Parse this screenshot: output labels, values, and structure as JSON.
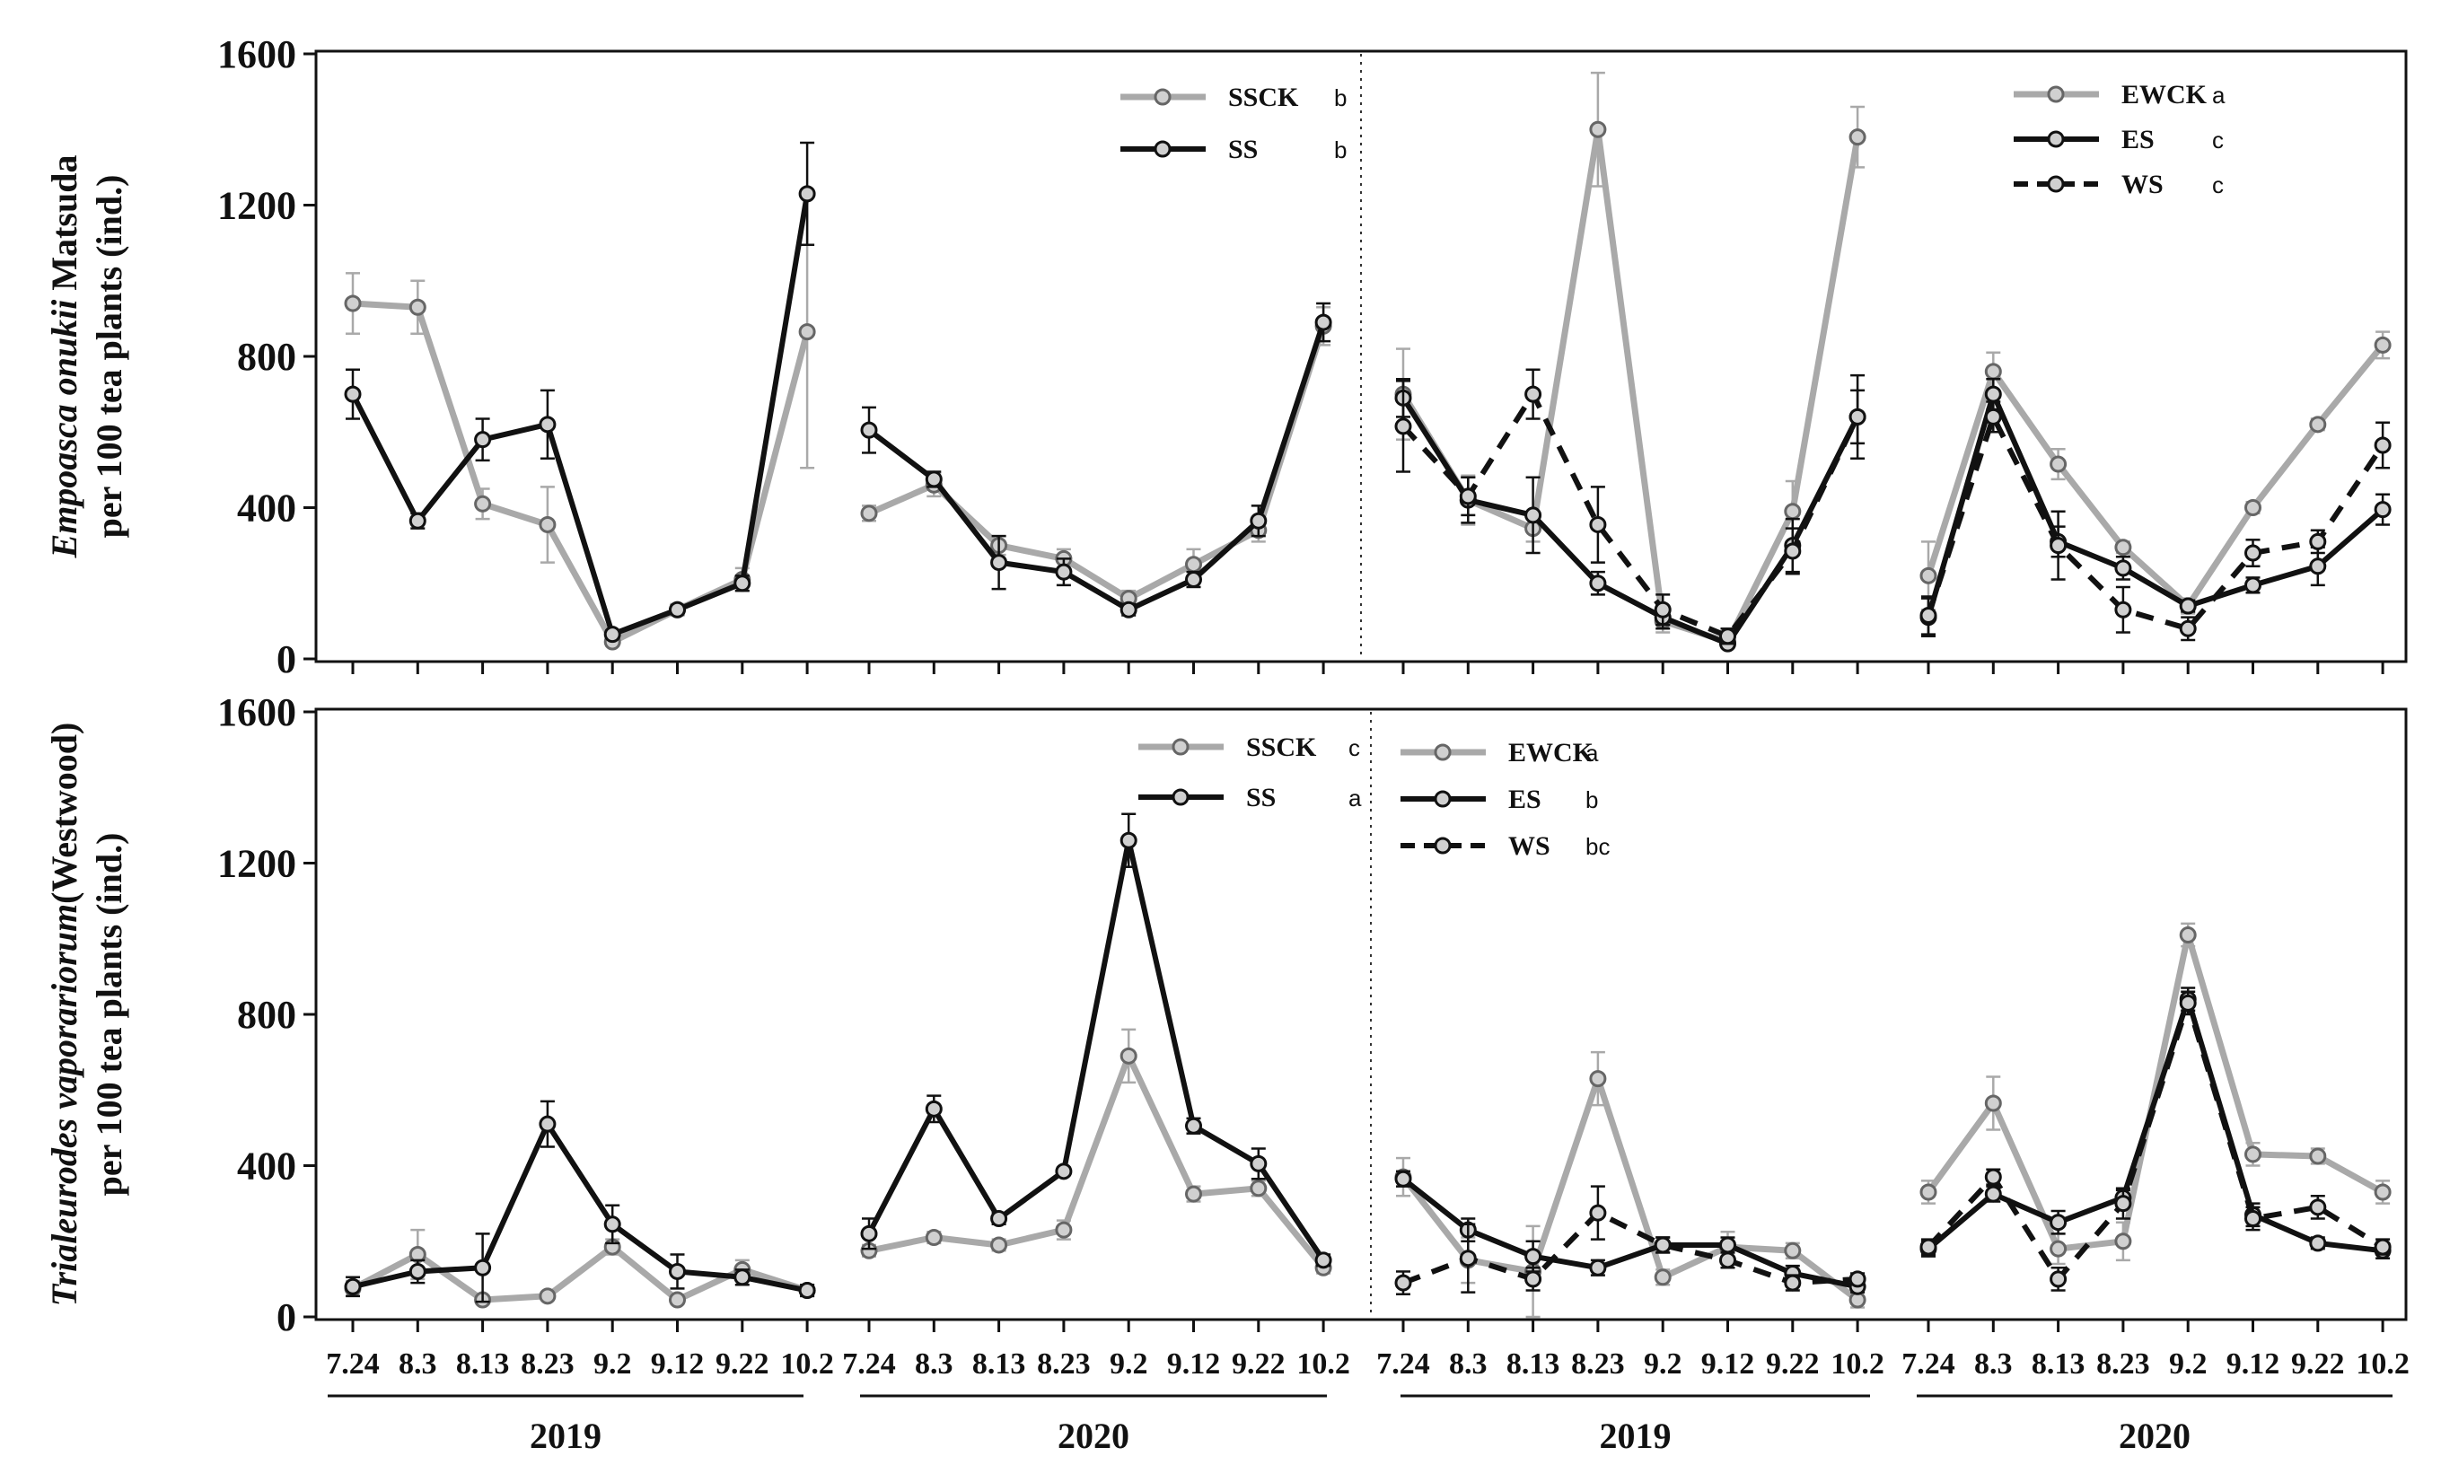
{
  "chart_data": [
    {
      "type": "line",
      "panel": "top",
      "ylabel_line1_italic": "Empoasca onukii",
      "ylabel_line1_rest": " Matsuda",
      "ylabel_line2": "per 100 tea plants (ind.)",
      "ylim": [
        0,
        1600
      ],
      "yticks": [
        "0",
        "400",
        "800",
        "1200",
        "1600"
      ],
      "categories": [
        "7.24",
        "8.3",
        "8.13",
        "8.23",
        "9.2",
        "9.12",
        "9.22",
        "10.2"
      ],
      "groups": [
        {
          "year": "2019",
          "series": [
            {
              "name": "SSCK",
              "style": "gray",
              "values": [
                940,
                930,
                410,
                355,
                45,
                130,
                210,
                865
              ],
              "errors": [
                80,
                70,
                40,
                100,
                10,
                15,
                30,
                360
              ]
            },
            {
              "name": "SS",
              "style": "black",
              "values": [
                700,
                365,
                580,
                620,
                65,
                130,
                200,
                1230
              ],
              "errors": [
                65,
                20,
                55,
                90,
                10,
                12,
                20,
                135
              ]
            }
          ]
        },
        {
          "year": "2020",
          "series": [
            {
              "name": "SSCK",
              "style": "gray",
              "values": [
                385,
                460,
                300,
                265,
                160,
                250,
                340,
                880
              ],
              "errors": [
                20,
                30,
                25,
                25,
                20,
                40,
                30,
                50
              ]
            },
            {
              "name": "SS",
              "style": "black",
              "values": [
                605,
                475,
                255,
                230,
                130,
                210,
                365,
                890
              ],
              "errors": [
                60,
                20,
                70,
                35,
                15,
                20,
                40,
                50
              ]
            }
          ]
        },
        {
          "year": "2019",
          "series": [
            {
              "name": "EWCK",
              "style": "gray",
              "values": [
                700,
                420,
                345,
                1400,
                100,
                45,
                390,
                1380
              ],
              "errors": [
                120,
                65,
                35,
                150,
                30,
                10,
                80,
                80
              ]
            },
            {
              "name": "ES",
              "style": "black",
              "values": [
                690,
                420,
                380,
                200,
                110,
                40,
                300,
                640
              ],
              "errors": [
                50,
                60,
                100,
                30,
                30,
                10,
                70,
                70
              ]
            },
            {
              "name": "WS",
              "style": "dash",
              "values": [
                615,
                430,
                700,
                355,
                130,
                60,
                285,
                640
              ],
              "errors": [
                120,
                50,
                65,
                100,
                40,
                20,
                60,
                110
              ]
            }
          ]
        },
        {
          "year": "2020",
          "series": [
            {
              "name": "EWCK",
              "style": "gray",
              "values": [
                220,
                760,
                515,
                295,
                140,
                400,
                620,
                830
              ],
              "errors": [
                90,
                50,
                40,
                15,
                20,
                15,
                15,
                35
              ]
            },
            {
              "name": "ES",
              "style": "black",
              "values": [
                110,
                700,
                310,
                240,
                140,
                195,
                245,
                395
              ],
              "errors": [
                50,
                40,
                40,
                30,
                15,
                20,
                50,
                40
              ]
            },
            {
              "name": "WS",
              "style": "dash",
              "values": [
                115,
                640,
                300,
                130,
                80,
                280,
                310,
                565
              ],
              "errors": [
                50,
                40,
                90,
                60,
                30,
                35,
                30,
                60
              ]
            }
          ]
        }
      ],
      "legends": {
        "left": [
          {
            "name": "SSCK",
            "sig": "b"
          },
          {
            "name": "SS",
            "sig": "b"
          }
        ],
        "right": [
          {
            "name": "EWCK",
            "sig": "a"
          },
          {
            "name": "ES",
            "sig": "c"
          },
          {
            "name": "WS",
            "sig": "c"
          }
        ]
      }
    },
    {
      "type": "line",
      "panel": "bottom",
      "ylabel_line1_italic": "Trialeurodes vaporariorum",
      "ylabel_line1_rest": "(Westwood)",
      "ylabel_line2": "per 100 tea plants (ind.)",
      "ylim": [
        0,
        1600
      ],
      "yticks": [
        "0",
        "400",
        "800",
        "1200",
        "1600"
      ],
      "categories": [
        "7.24",
        "8.3",
        "8.13",
        "8.23",
        "9.2",
        "9.12",
        "9.22",
        "10.2"
      ],
      "groups": [
        {
          "year": "2019",
          "series": [
            {
              "name": "SSCK",
              "style": "gray",
              "values": [
                75,
                165,
                45,
                55,
                185,
                45,
                125,
                70
              ],
              "errors": [
                20,
                65,
                10,
                10,
                20,
                10,
                25,
                15
              ]
            },
            {
              "name": "SS",
              "style": "black",
              "values": [
                80,
                120,
                130,
                510,
                245,
                120,
                105,
                70
              ],
              "errors": [
                25,
                30,
                90,
                60,
                50,
                45,
                20,
                15
              ]
            }
          ]
        },
        {
          "year": "2020",
          "series": [
            {
              "name": "SSCK",
              "style": "gray",
              "values": [
                175,
                210,
                190,
                230,
                690,
                325,
                340,
                130
              ],
              "errors": [
                15,
                15,
                15,
                25,
                70,
                20,
                20,
                15
              ]
            },
            {
              "name": "SS",
              "style": "black",
              "values": [
                220,
                550,
                260,
                385,
                1260,
                505,
                405,
                150
              ],
              "errors": [
                40,
                35,
                15,
                10,
                70,
                20,
                40,
                15
              ]
            }
          ]
        },
        {
          "year": "2019",
          "series": [
            {
              "name": "EWCK",
              "style": "gray",
              "values": [
                370,
                150,
                120,
                630,
                105,
                185,
                175,
                45
              ],
              "errors": [
                50,
                60,
                120,
                70,
                20,
                40,
                20,
                20
              ]
            },
            {
              "name": "ES",
              "style": "black",
              "values": [
                365,
                230,
                160,
                130,
                190,
                190,
                115,
                80
              ],
              "errors": [
                20,
                30,
                40,
                20,
                20,
                20,
                20,
                15
              ]
            },
            {
              "name": "WS",
              "style": "dash",
              "values": [
                90,
                155,
                100,
                275,
                190,
                150,
                90,
                100
              ],
              "errors": [
                30,
                90,
                30,
                70,
                20,
                20,
                20,
                15
              ]
            }
          ]
        },
        {
          "year": "2020",
          "series": [
            {
              "name": "EWCK",
              "style": "gray",
              "values": [
                330,
                565,
                180,
                200,
                1010,
                430,
                425,
                330
              ],
              "errors": [
                30,
                70,
                40,
                50,
                30,
                30,
                20,
                30
              ]
            },
            {
              "name": "ES",
              "style": "black",
              "values": [
                180,
                325,
                250,
                315,
                840,
                270,
                195,
                175
              ],
              "errors": [
                20,
                20,
                30,
                20,
                30,
                30,
                15,
                20
              ]
            },
            {
              "name": "WS",
              "style": "dash",
              "values": [
                185,
                370,
                100,
                300,
                830,
                260,
                290,
                185
              ],
              "errors": [
                20,
                20,
                30,
                40,
                30,
                30,
                30,
                20
              ]
            }
          ]
        }
      ],
      "legends": {
        "left": [
          {
            "name": "SSCK",
            "sig": "c"
          },
          {
            "name": "SS",
            "sig": "a"
          }
        ],
        "right": [
          {
            "name": "EWCK",
            "sig": "a"
          },
          {
            "name": "ES",
            "sig": "b"
          },
          {
            "name": "WS",
            "sig": "bc"
          }
        ]
      }
    }
  ],
  "x_year_labels": [
    "2019",
    "2020",
    "2019",
    "2020"
  ],
  "colors": {
    "gray": "#a9a9a9",
    "black": "#111111",
    "marker_fill": "#d0d0d0"
  }
}
